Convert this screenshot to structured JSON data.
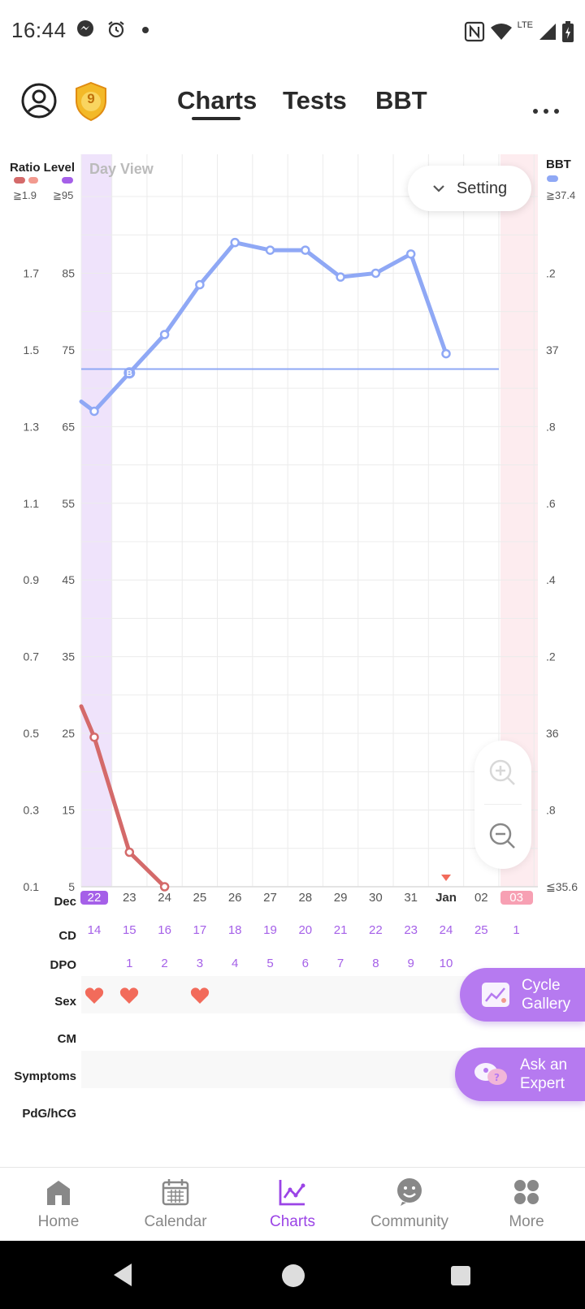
{
  "status_bar": {
    "time": "16:44",
    "network": "LTE",
    "icons": [
      "messenger-icon",
      "alarm-icon",
      "notification-dot-icon",
      "nfc-icon",
      "wifi-icon",
      "signal-icon",
      "battery-icon"
    ]
  },
  "header": {
    "tabs": [
      {
        "label": "Charts",
        "active": true
      },
      {
        "label": "Tests",
        "active": false
      },
      {
        "label": "BBT",
        "active": false
      }
    ],
    "badge_level": "9",
    "more_label": "• • •"
  },
  "chart": {
    "day_view_label": "Day View",
    "left_axis_title": "Ratio Level",
    "right_axis_title": "BBT",
    "ratio_cap": "≧1.9",
    "level_cap": "≧95",
    "bbt_cap": "≧37.4",
    "setting_label": "Setting",
    "colors": {
      "ratio": "#d46a6a",
      "ratio_light": "#f29a8f",
      "level": "#a560e8",
      "bbt": "#8fa8f5",
      "accent": "#9b44e6",
      "period": "#f7a0b3"
    }
  },
  "chart_data": {
    "type": "line",
    "title": "",
    "x_categories": [
      "22",
      "23",
      "24",
      "25",
      "26",
      "27",
      "28",
      "29",
      "30",
      "31",
      "Jan",
      "02",
      "03"
    ],
    "ratio_ticks": [
      "1.7",
      "1.5",
      "1.3",
      "1.1",
      "0.9",
      "0.7",
      "0.5",
      "0.3",
      "0.1"
    ],
    "level_ticks": [
      "85",
      "75",
      "65",
      "55",
      "45",
      "35",
      "25",
      "15",
      "5"
    ],
    "bbt_ticks": [
      ".2",
      "37",
      ".8",
      ".6",
      ".4",
      ".2",
      "36",
      ".8",
      "≦35.6"
    ],
    "ylim_bbt": [
      35.6,
      37.4
    ],
    "ylim_ratio": [
      0.1,
      1.9
    ],
    "series": [
      {
        "name": "BBT",
        "color": "#8fa8f5",
        "points": [
          [
            "22",
            36.84
          ],
          [
            "23",
            36.94
          ],
          [
            "24",
            37.04
          ],
          [
            "25",
            37.17
          ],
          [
            "26",
            37.28
          ],
          [
            "27",
            37.26
          ],
          [
            "28",
            37.26
          ],
          [
            "29",
            37.19
          ],
          [
            "30",
            37.2
          ],
          [
            "31",
            37.25
          ],
          [
            "Jan",
            36.99
          ]
        ]
      },
      {
        "name": "Ratio",
        "color": "#d46a6a",
        "points": [
          [
            "22",
            0.49
          ],
          [
            "23",
            0.19
          ],
          [
            "24",
            0.1
          ]
        ]
      }
    ],
    "coverline": {
      "value": 36.95,
      "marker": "B"
    },
    "highlight_days": {
      "ovulation_day": "22",
      "period_day": "03"
    },
    "today_marker": "Jan",
    "grid": true
  },
  "rows": {
    "dec_label": "Dec",
    "cd_label": "CD",
    "dpo_label": "DPO",
    "sex_label": "Sex",
    "cm_label": "CM",
    "symptoms_label": "Symptoms",
    "pdg_label": "PdG/hCG",
    "dates": [
      "22",
      "23",
      "24",
      "25",
      "26",
      "27",
      "28",
      "29",
      "30",
      "31",
      "Jan",
      "02",
      "03"
    ],
    "cd": [
      "14",
      "15",
      "16",
      "17",
      "18",
      "19",
      "20",
      "21",
      "22",
      "23",
      "24",
      "25",
      "1"
    ],
    "dpo": [
      "",
      "1",
      "2",
      "3",
      "4",
      "5",
      "6",
      "7",
      "8",
      "9",
      "10",
      "",
      ""
    ],
    "sex": [
      true,
      true,
      false,
      true,
      false,
      false,
      false,
      false,
      false,
      false,
      false,
      false,
      false
    ]
  },
  "floating": {
    "cycle_gallery": "Cycle\nGallery",
    "ask_expert": "Ask an\nExpert"
  },
  "bottom_nav": [
    {
      "label": "Home",
      "icon": "home-icon",
      "active": false
    },
    {
      "label": "Calendar",
      "icon": "calendar-icon",
      "active": false
    },
    {
      "label": "Charts",
      "icon": "charts-icon",
      "active": true
    },
    {
      "label": "Community",
      "icon": "community-icon",
      "active": false
    },
    {
      "label": "More",
      "icon": "more-icon",
      "active": false
    }
  ]
}
